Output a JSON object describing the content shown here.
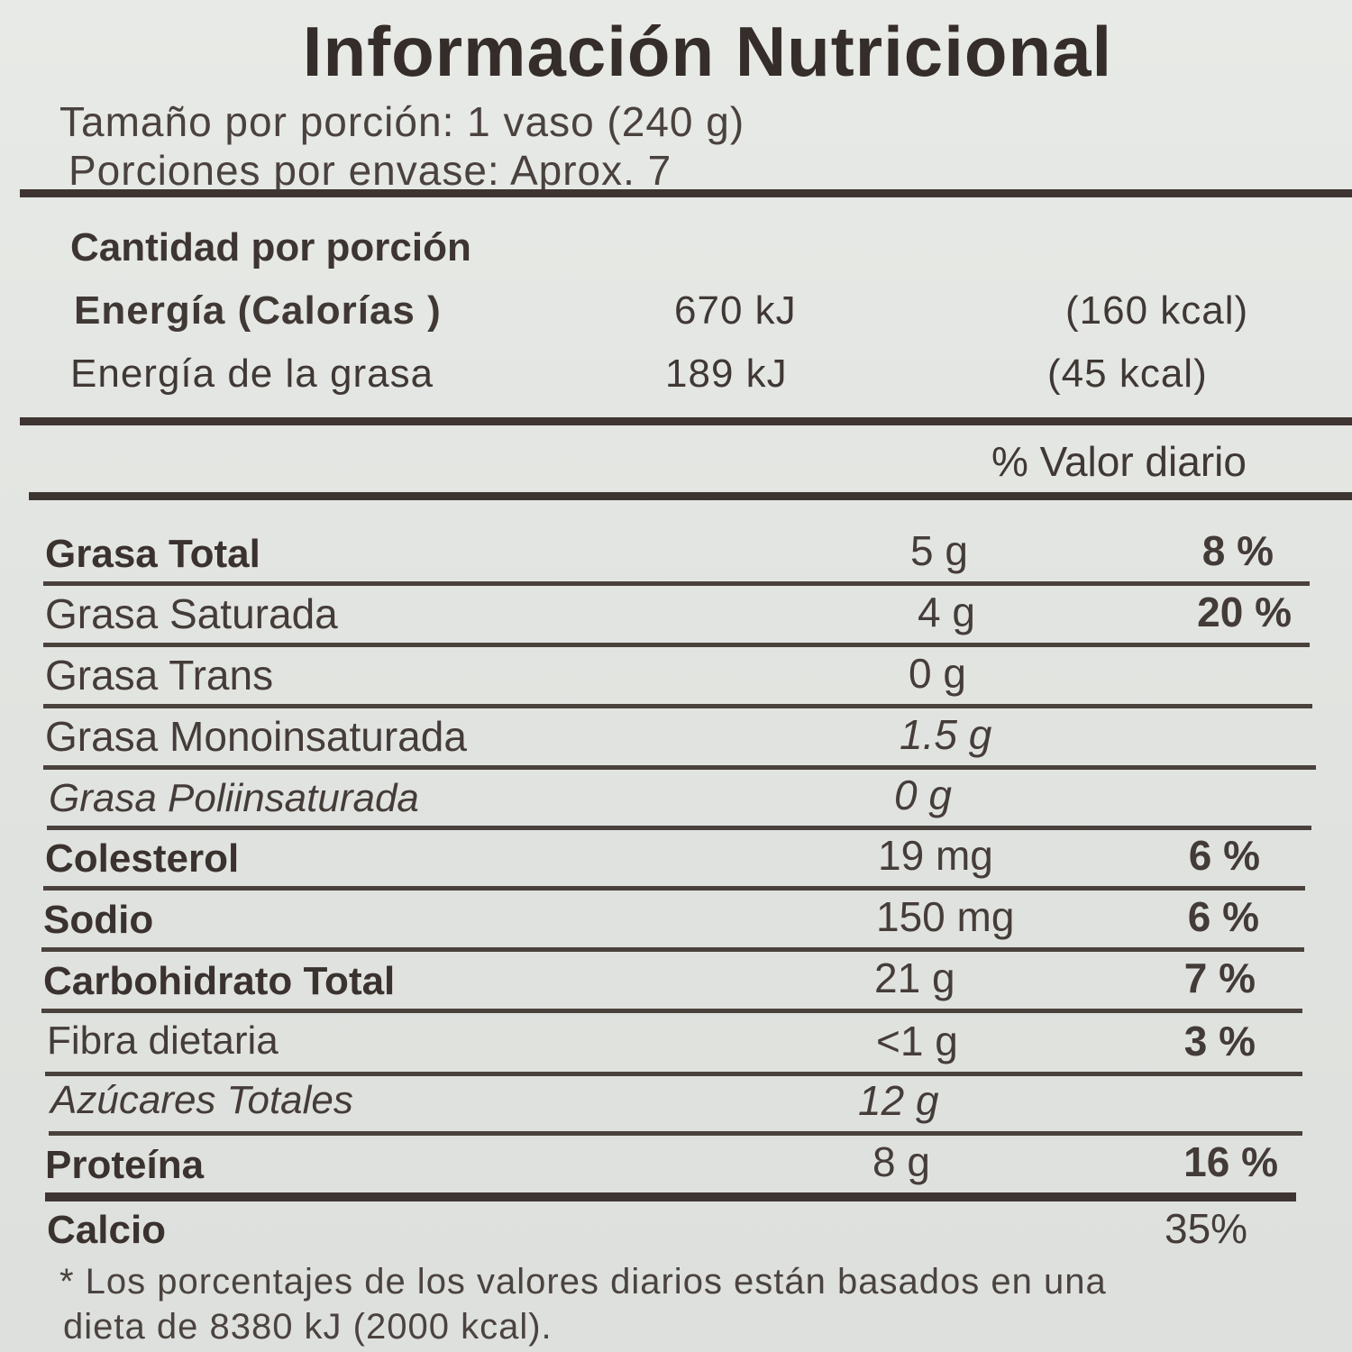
{
  "title": "Información Nutricional",
  "serving": {
    "size": "Tamaño por porción: 1 vaso (240 g)",
    "per_container": "Porciones por envase: Aprox. 7"
  },
  "amount_per_serving": "Cantidad por porción",
  "energy": [
    {
      "label": "Energía  (Calorías )",
      "kj": "670 kJ",
      "kcal": "(160 kcal)"
    },
    {
      "label": "Energía de la grasa",
      "kj": "189 kJ",
      "kcal": "(45 kcal)"
    }
  ],
  "daily_value_header": "% Valor diario",
  "nutrients": [
    {
      "name": "Grasa Total",
      "amount": "5 g",
      "dv": "8 %"
    },
    {
      "name": "Grasa Saturada",
      "amount": "4 g",
      "dv": "20 %"
    },
    {
      "name": "Grasa Trans",
      "amount": "0 g",
      "dv": ""
    },
    {
      "name": "Grasa Monoinsaturada",
      "amount": "1.5 g",
      "dv": ""
    },
    {
      "name": "Grasa Poliinsaturada",
      "amount": "0 g",
      "dv": ""
    },
    {
      "name": "Colesterol",
      "amount": "19 mg",
      "dv": "6 %"
    },
    {
      "name": "Sodio",
      "amount": "150 mg",
      "dv": "6 %"
    },
    {
      "name": "Carbohidrato Total",
      "amount": "21 g",
      "dv": "7 %"
    },
    {
      "name": "Fibra dietaria",
      "amount": "<1 g",
      "dv": "3 %"
    },
    {
      "name": "Azúcares Totales",
      "amount": "12 g",
      "dv": ""
    },
    {
      "name": "Proteína",
      "amount": "8 g",
      "dv": "16 %"
    }
  ],
  "calcium": {
    "name": "Calcio",
    "dv": "35%"
  },
  "footnote": {
    "line1": "* Los  porcentajes  de  los valores  diarios  están basados en una",
    "line2": "dieta  de 8380 kJ (2000  kcal)."
  }
}
